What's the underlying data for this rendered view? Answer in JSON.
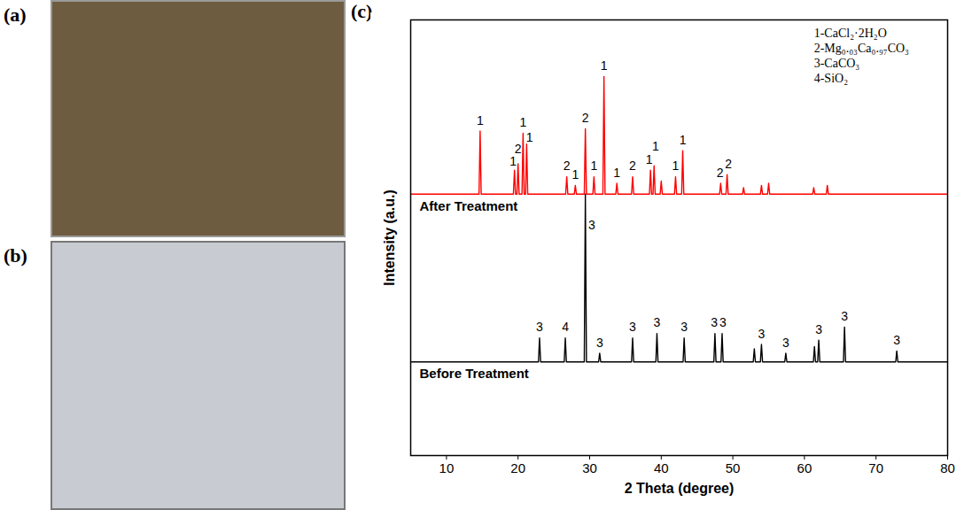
{
  "photos": [
    {
      "label": "(a)"
    },
    {
      "label": "(b)"
    }
  ],
  "chart_data": {
    "type": "line",
    "panel_label": "(c)",
    "x_label": "2 Theta (degree)",
    "y_label": "Intensity (a.u.)",
    "xlim": [
      5,
      80
    ],
    "xticks": [
      10,
      20,
      30,
      40,
      50,
      60,
      70,
      80
    ],
    "ylim": [
      0,
      100
    ],
    "tick_labels": "x",
    "phase_labels": [
      "1-CaCl₂·2H₂O",
      "2-Mg₀.₀₃Ca₀.₉₇CO₃",
      "3-CaCO₃",
      "4-SiO₂"
    ],
    "series": [
      {
        "name": "After Treatment",
        "color": "#ff0000",
        "x": [
          5,
          14.55,
          14.7,
          14.85,
          19.35,
          19.5,
          19.65,
          19.85,
          20.0,
          20.15,
          20.55,
          20.7,
          20.85,
          21.05,
          21.2,
          21.35,
          26.65,
          26.8,
          26.95,
          27.85,
          28.0,
          28.15,
          29.25,
          29.4,
          29.55,
          30.45,
          30.6,
          30.75,
          31.85,
          32.0,
          32.15,
          33.65,
          33.8,
          33.95,
          35.85,
          36.0,
          36.15,
          38.35,
          38.5,
          38.65,
          38.85,
          39.0,
          39.15,
          39.85,
          40.0,
          40.15,
          41.85,
          42.0,
          42.15,
          42.85,
          43.0,
          43.15,
          48.15,
          48.3,
          48.45,
          49.05,
          49.2,
          49.35,
          51.35,
          51.5,
          51.65,
          53.85,
          54.0,
          54.15,
          54.85,
          55.0,
          55.15,
          61.15,
          61.3,
          61.45,
          63.05,
          63.2,
          63.35,
          80
        ],
        "values": [
          60,
          60,
          74.5,
          60,
          60,
          65.5,
          60,
          60,
          67,
          60,
          60,
          74,
          60,
          60,
          71.5,
          60,
          60,
          64,
          60,
          60,
          62,
          60,
          60,
          75,
          60,
          60,
          64,
          60,
          60,
          87,
          60,
          60,
          62.5,
          60,
          60,
          64,
          60,
          60,
          65.5,
          60,
          60,
          66.5,
          60,
          60,
          63,
          60,
          60,
          64,
          60,
          60,
          70,
          60,
          60,
          62.5,
          60,
          60,
          64.5,
          60,
          60,
          61.5,
          60,
          60,
          62,
          60,
          60,
          62.5,
          60,
          60,
          61.5,
          60,
          60,
          62,
          60,
          60
        ]
      },
      {
        "name": "Before Treatment",
        "color": "#000000",
        "x": [
          5,
          22.85,
          23.0,
          23.15,
          26.45,
          26.6,
          26.75,
          29.25,
          29.4,
          29.55,
          31.25,
          31.4,
          31.55,
          35.85,
          36.0,
          36.15,
          39.25,
          39.4,
          39.55,
          43.05,
          43.2,
          43.35,
          47.35,
          47.5,
          47.65,
          48.35,
          48.5,
          48.65,
          52.85,
          53.0,
          53.15,
          53.85,
          54.0,
          54.15,
          57.25,
          57.4,
          57.55,
          61.25,
          61.4,
          61.55,
          61.85,
          62.0,
          62.15,
          65.45,
          65.6,
          65.75,
          72.75,
          72.9,
          73.05,
          80
        ],
        "values": [
          21.5,
          21.5,
          27,
          21.5,
          21.5,
          27,
          21.5,
          21.5,
          60,
          21.5,
          21.5,
          23.5,
          21.5,
          21.5,
          27,
          21.5,
          21.5,
          28,
          21.5,
          21.5,
          27,
          21.5,
          21.5,
          28,
          21.5,
          21.5,
          28,
          21.5,
          21.5,
          24.5,
          21.5,
          21.5,
          25.5,
          21.5,
          21.5,
          23.5,
          21.5,
          21.5,
          25,
          21.5,
          21.5,
          26.5,
          21.5,
          21.5,
          29.5,
          21.5,
          21.5,
          24,
          21.5,
          21.5
        ]
      }
    ],
    "annotations": [
      {
        "x": 14.7,
        "y": 76,
        "text": "1"
      },
      {
        "x": 19.3,
        "y": 66.5,
        "text": "1"
      },
      {
        "x": 20.0,
        "y": 69.5,
        "text": "2"
      },
      {
        "x": 20.7,
        "y": 75.5,
        "text": "1"
      },
      {
        "x": 21.6,
        "y": 72,
        "text": "1"
      },
      {
        "x": 26.8,
        "y": 65.5,
        "text": "2"
      },
      {
        "x": 28.0,
        "y": 63.5,
        "text": "1"
      },
      {
        "x": 29.4,
        "y": 76.5,
        "text": "2"
      },
      {
        "x": 30.6,
        "y": 65.5,
        "text": "1"
      },
      {
        "x": 32.0,
        "y": 88.5,
        "text": "1"
      },
      {
        "x": 33.8,
        "y": 64,
        "text": "1"
      },
      {
        "x": 36.0,
        "y": 65.5,
        "text": "2"
      },
      {
        "x": 38.3,
        "y": 67,
        "text": "1"
      },
      {
        "x": 39.2,
        "y": 70,
        "text": "1"
      },
      {
        "x": 42.0,
        "y": 65.5,
        "text": "1"
      },
      {
        "x": 43.0,
        "y": 71.5,
        "text": "1"
      },
      {
        "x": 48.2,
        "y": 64,
        "text": "2"
      },
      {
        "x": 49.4,
        "y": 66,
        "text": "2"
      },
      {
        "x": 23.0,
        "y": 28.5,
        "text": "3"
      },
      {
        "x": 26.6,
        "y": 28.5,
        "text": "4"
      },
      {
        "x": 30.3,
        "y": 52,
        "text": "3"
      },
      {
        "x": 31.4,
        "y": 25,
        "text": "3"
      },
      {
        "x": 36.0,
        "y": 28.5,
        "text": "3"
      },
      {
        "x": 39.4,
        "y": 29.5,
        "text": "3"
      },
      {
        "x": 43.2,
        "y": 28.5,
        "text": "3"
      },
      {
        "x": 47.4,
        "y": 29.5,
        "text": "3"
      },
      {
        "x": 48.6,
        "y": 29.5,
        "text": "3"
      },
      {
        "x": 54.0,
        "y": 27,
        "text": "3"
      },
      {
        "x": 57.4,
        "y": 25,
        "text": "3"
      },
      {
        "x": 62.0,
        "y": 28,
        "text": "3"
      },
      {
        "x": 65.6,
        "y": 31,
        "text": "3"
      },
      {
        "x": 72.9,
        "y": 25.5,
        "text": "3"
      }
    ]
  }
}
